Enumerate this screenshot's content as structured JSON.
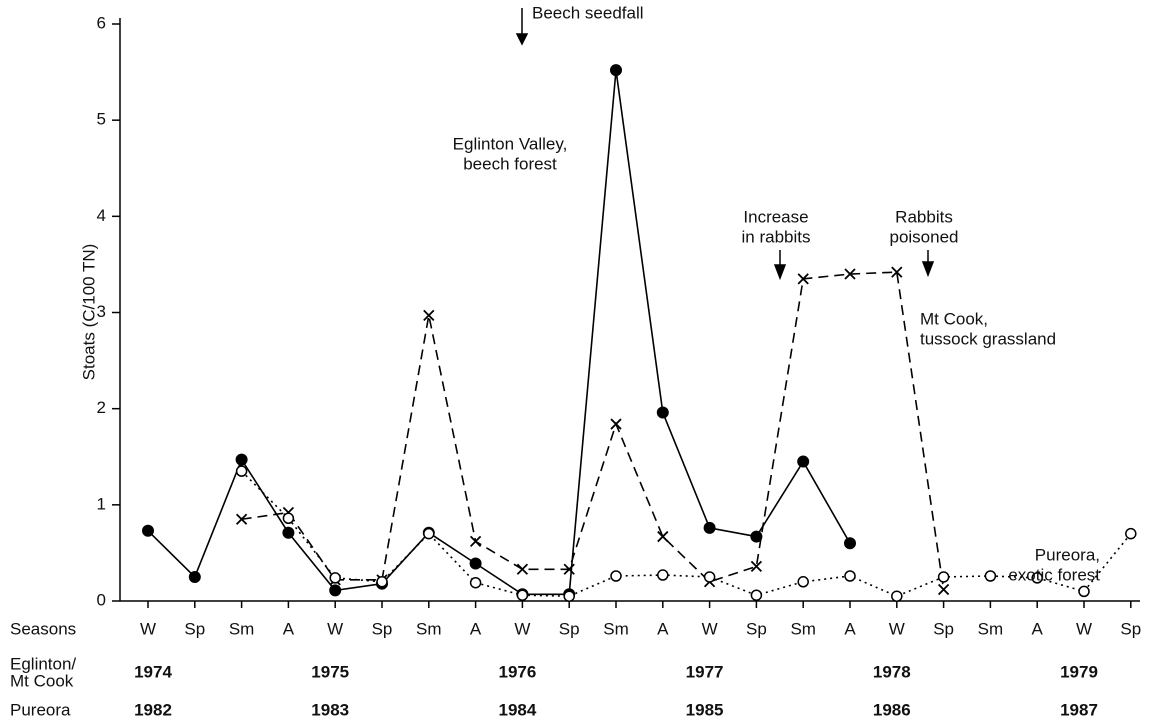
{
  "chart_data": {
    "type": "line",
    "ylabel": "Stoats (C/100 TN)",
    "categories": [
      "W",
      "Sp",
      "Sm",
      "A",
      "W",
      "Sp",
      "Sm",
      "A",
      "W",
      "Sp",
      "Sm",
      "A",
      "W",
      "Sp",
      "Sm",
      "A",
      "W",
      "Sp",
      "Sm",
      "A",
      "W",
      "Sp"
    ],
    "row_labels": {
      "seasons": "Seasons",
      "eglinton": [
        "Eglinton/",
        "Mt Cook"
      ],
      "pureora": "Pureora"
    },
    "eglinton_years": [
      "1974",
      "1975",
      "1976",
      "1977",
      "1978",
      "1979"
    ],
    "pureora_years": [
      "1982",
      "1983",
      "1984",
      "1985",
      "1986",
      "1987"
    ],
    "ylim": [
      0,
      6
    ],
    "yticks": [
      0,
      1,
      2,
      3,
      4,
      5,
      6
    ],
    "series": [
      {
        "name": "Eglinton Valley",
        "marker": "filled-circle",
        "dash": "solid",
        "color": "#000000",
        "values": [
          0.73,
          0.25,
          1.47,
          0.71,
          0.11,
          0.18,
          0.71,
          0.39,
          0.07,
          0.07,
          5.52,
          1.96,
          0.76,
          0.67,
          1.45,
          0.6,
          null,
          null,
          null,
          null,
          null,
          null
        ]
      },
      {
        "name": "Mt Cook",
        "marker": "x",
        "dash": "dashed",
        "color": "#000000",
        "values": [
          null,
          null,
          0.85,
          0.92,
          0.22,
          0.22,
          2.97,
          0.62,
          0.33,
          0.33,
          1.84,
          0.67,
          0.2,
          0.36,
          3.35,
          3.4,
          3.42,
          0.12,
          null,
          null,
          null,
          null
        ]
      },
      {
        "name": "Pureora",
        "marker": "open-circle",
        "dash": "dotted",
        "color": "#000000",
        "values": [
          null,
          null,
          1.35,
          0.86,
          0.24,
          0.2,
          0.7,
          0.19,
          0.06,
          0.05,
          0.26,
          0.27,
          0.25,
          0.06,
          0.2,
          0.26,
          0.05,
          0.25,
          0.26,
          0.24,
          0.1,
          0.7
        ]
      }
    ],
    "annotations": [
      {
        "lines": [
          "Beech seedfall"
        ]
      },
      {
        "lines": [
          "Eglinton Valley,",
          "beech forest"
        ]
      },
      {
        "lines": [
          "Increase",
          "in rabbits"
        ]
      },
      {
        "lines": [
          "Rabbits",
          "poisoned"
        ]
      },
      {
        "lines": [
          "Mt Cook,",
          "tussock grassland"
        ]
      },
      {
        "lines": [
          "Pureora,",
          "exotic forest"
        ]
      }
    ]
  }
}
